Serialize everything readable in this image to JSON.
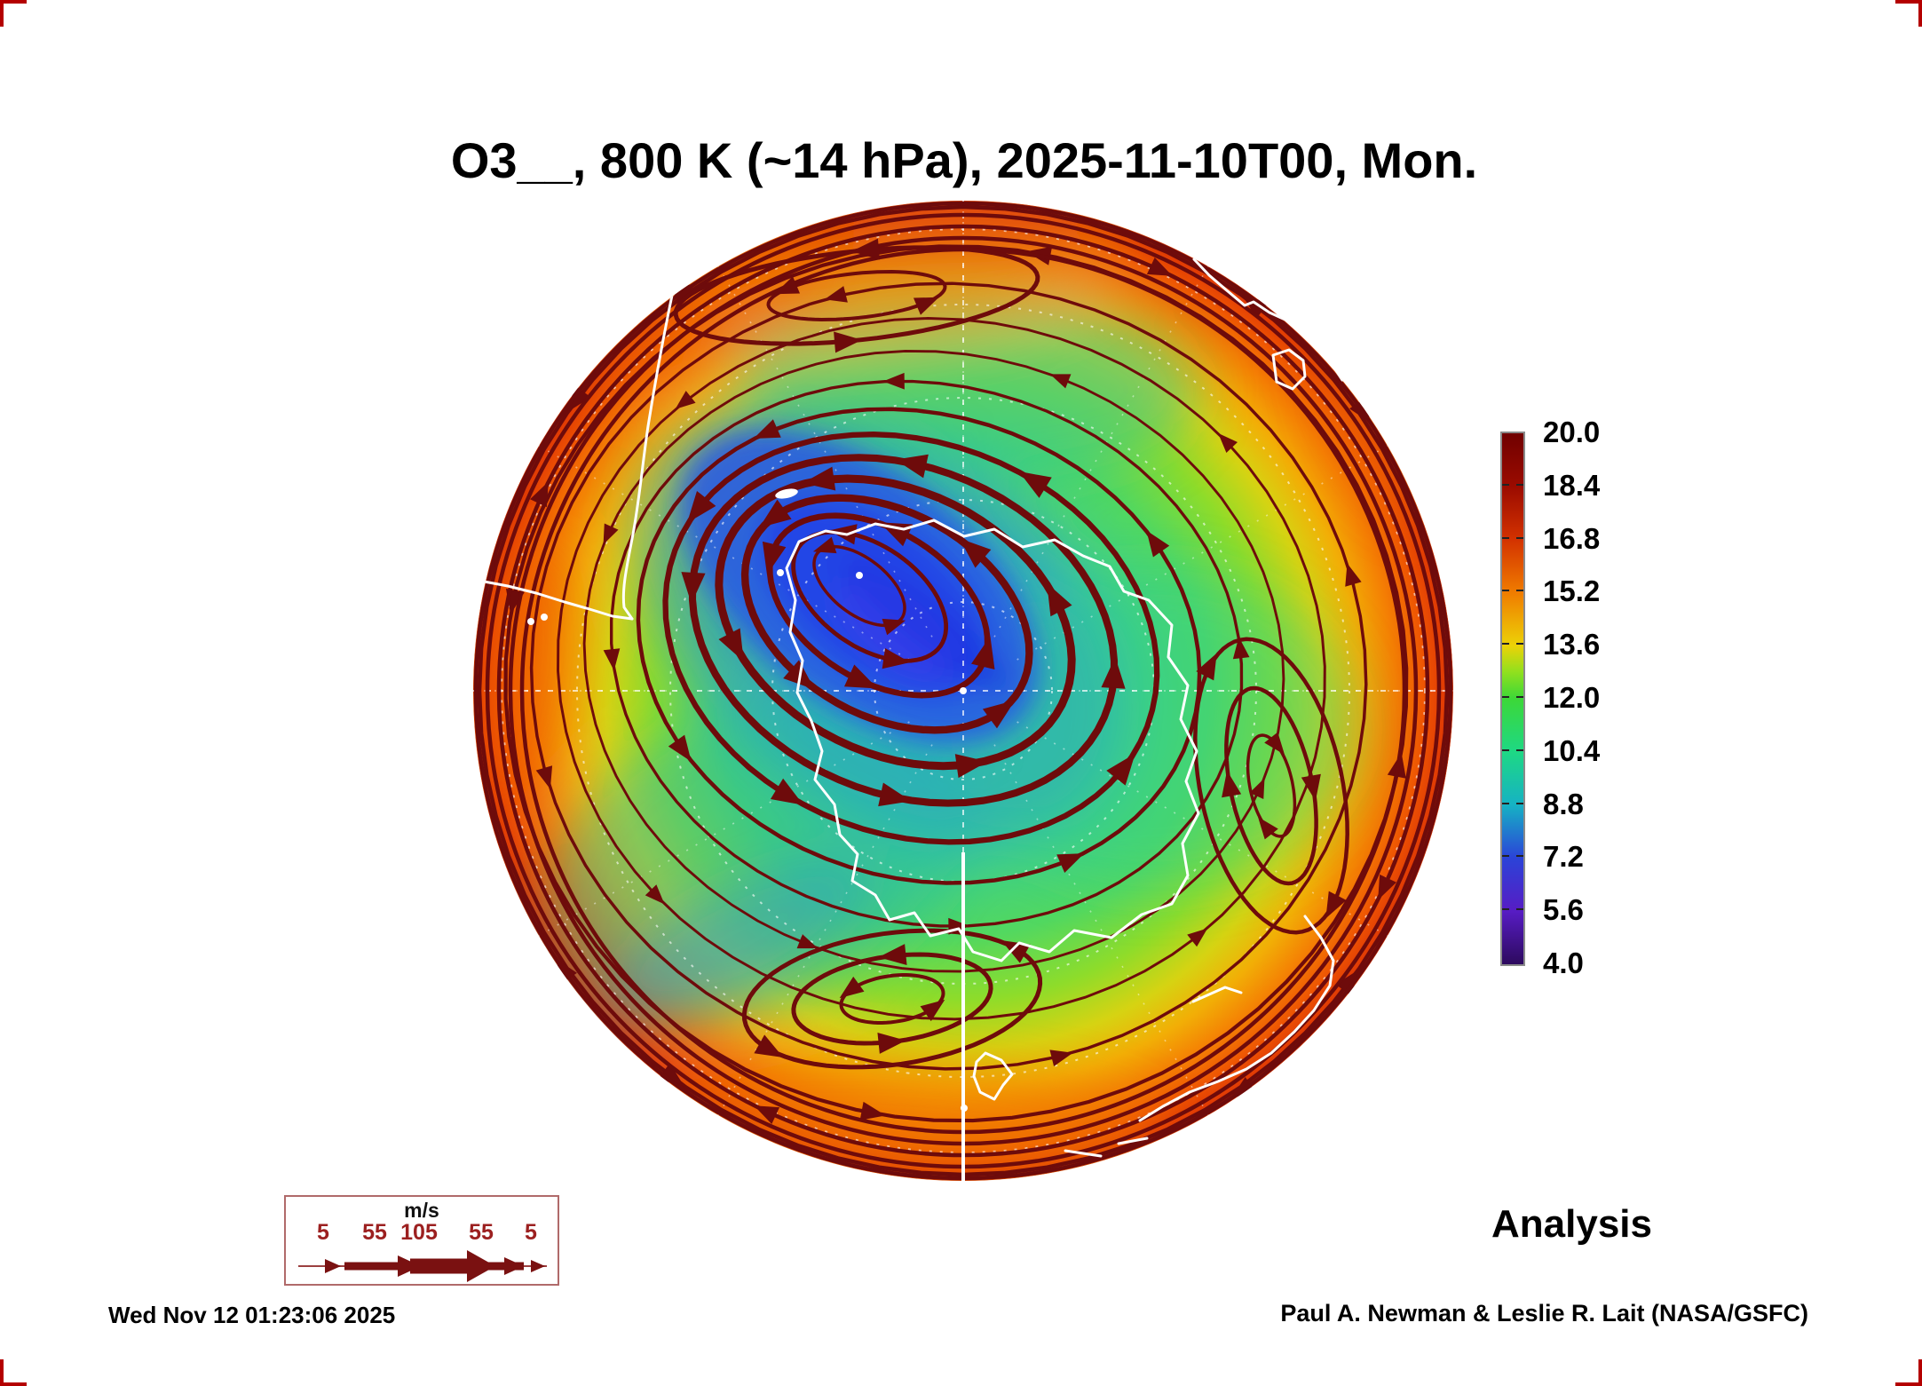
{
  "title": "O3__, 800 K (~14 hPa), 2025-11-10T00, Mon.",
  "run_label": "Analysis",
  "footer": {
    "generated": "Wed Nov 12 01:23:06 2025",
    "credit": "Paul A. Newman & Leslie R. Lait (NASA/GSFC)"
  },
  "colorbar": {
    "labels": [
      "20.0",
      "18.4",
      "16.8",
      "15.2",
      "13.6",
      "12.0",
      "10.4",
      "8.8",
      "7.2",
      "5.6",
      "4.0"
    ],
    "gradient_stops": [
      [
        "#700000",
        "0%"
      ],
      [
        "#9b0b00",
        "10%"
      ],
      [
        "#d33200",
        "20%"
      ],
      [
        "#f07c00",
        "30%"
      ],
      [
        "#ecd207",
        "40%"
      ],
      [
        "#90e01e",
        "45%"
      ],
      [
        "#3cd838",
        "50%"
      ],
      [
        "#1ed884",
        "60%"
      ],
      [
        "#16b2c4",
        "70%"
      ],
      [
        "#2b43d8",
        "80%"
      ],
      [
        "#571cc4",
        "90%"
      ],
      [
        "#2d0a5e",
        "100%"
      ]
    ]
  },
  "wind_legend": {
    "units": "m/s",
    "speeds": [
      "5",
      "55",
      "105",
      "55",
      "5"
    ]
  },
  "map_colors": {
    "streamline": "#6e0b0b",
    "coastline": "#ffffff",
    "vortex_core": "#2547ea",
    "rim": "#e84d04",
    "graticule": "#ffffff"
  },
  "chart_data": {
    "type": "heatmap",
    "title": "O3__, 800 K (~14 hPa), 2025-11-10T00, Mon.",
    "projection": "south polar stereographic (Antarctica centered)",
    "colorbar_range": [
      4.0,
      20.0
    ],
    "colorbar_ticks": [
      20.0,
      18.4,
      16.8,
      15.2,
      13.6,
      12.0,
      10.4,
      8.8,
      7.2,
      5.6,
      4.0
    ],
    "wind_speed_scale_ms": [
      5,
      55,
      105,
      55,
      5
    ],
    "features": {
      "polar_vortex_low": {
        "approx_value": 6,
        "location": "elongated ellipse northwest of the pole over the Weddell Sea / Antarctic Peninsula sector"
      },
      "midlatitude_field": {
        "approx_value": 11,
        "location": "broad green region covering most mid-latitudes"
      },
      "subtropical_ring": {
        "approx_value": 16,
        "location": "orange-red ring along the outer (equatorward) edge of the disk"
      },
      "streamlines": "dark maroon closed streamlines circulate around the vortex; secondary eddies near the top edge, right edge and bottom center; outermost rim flow reversed"
    },
    "legend_position": "colorbar right side",
    "annotations": [
      "Analysis"
    ]
  }
}
